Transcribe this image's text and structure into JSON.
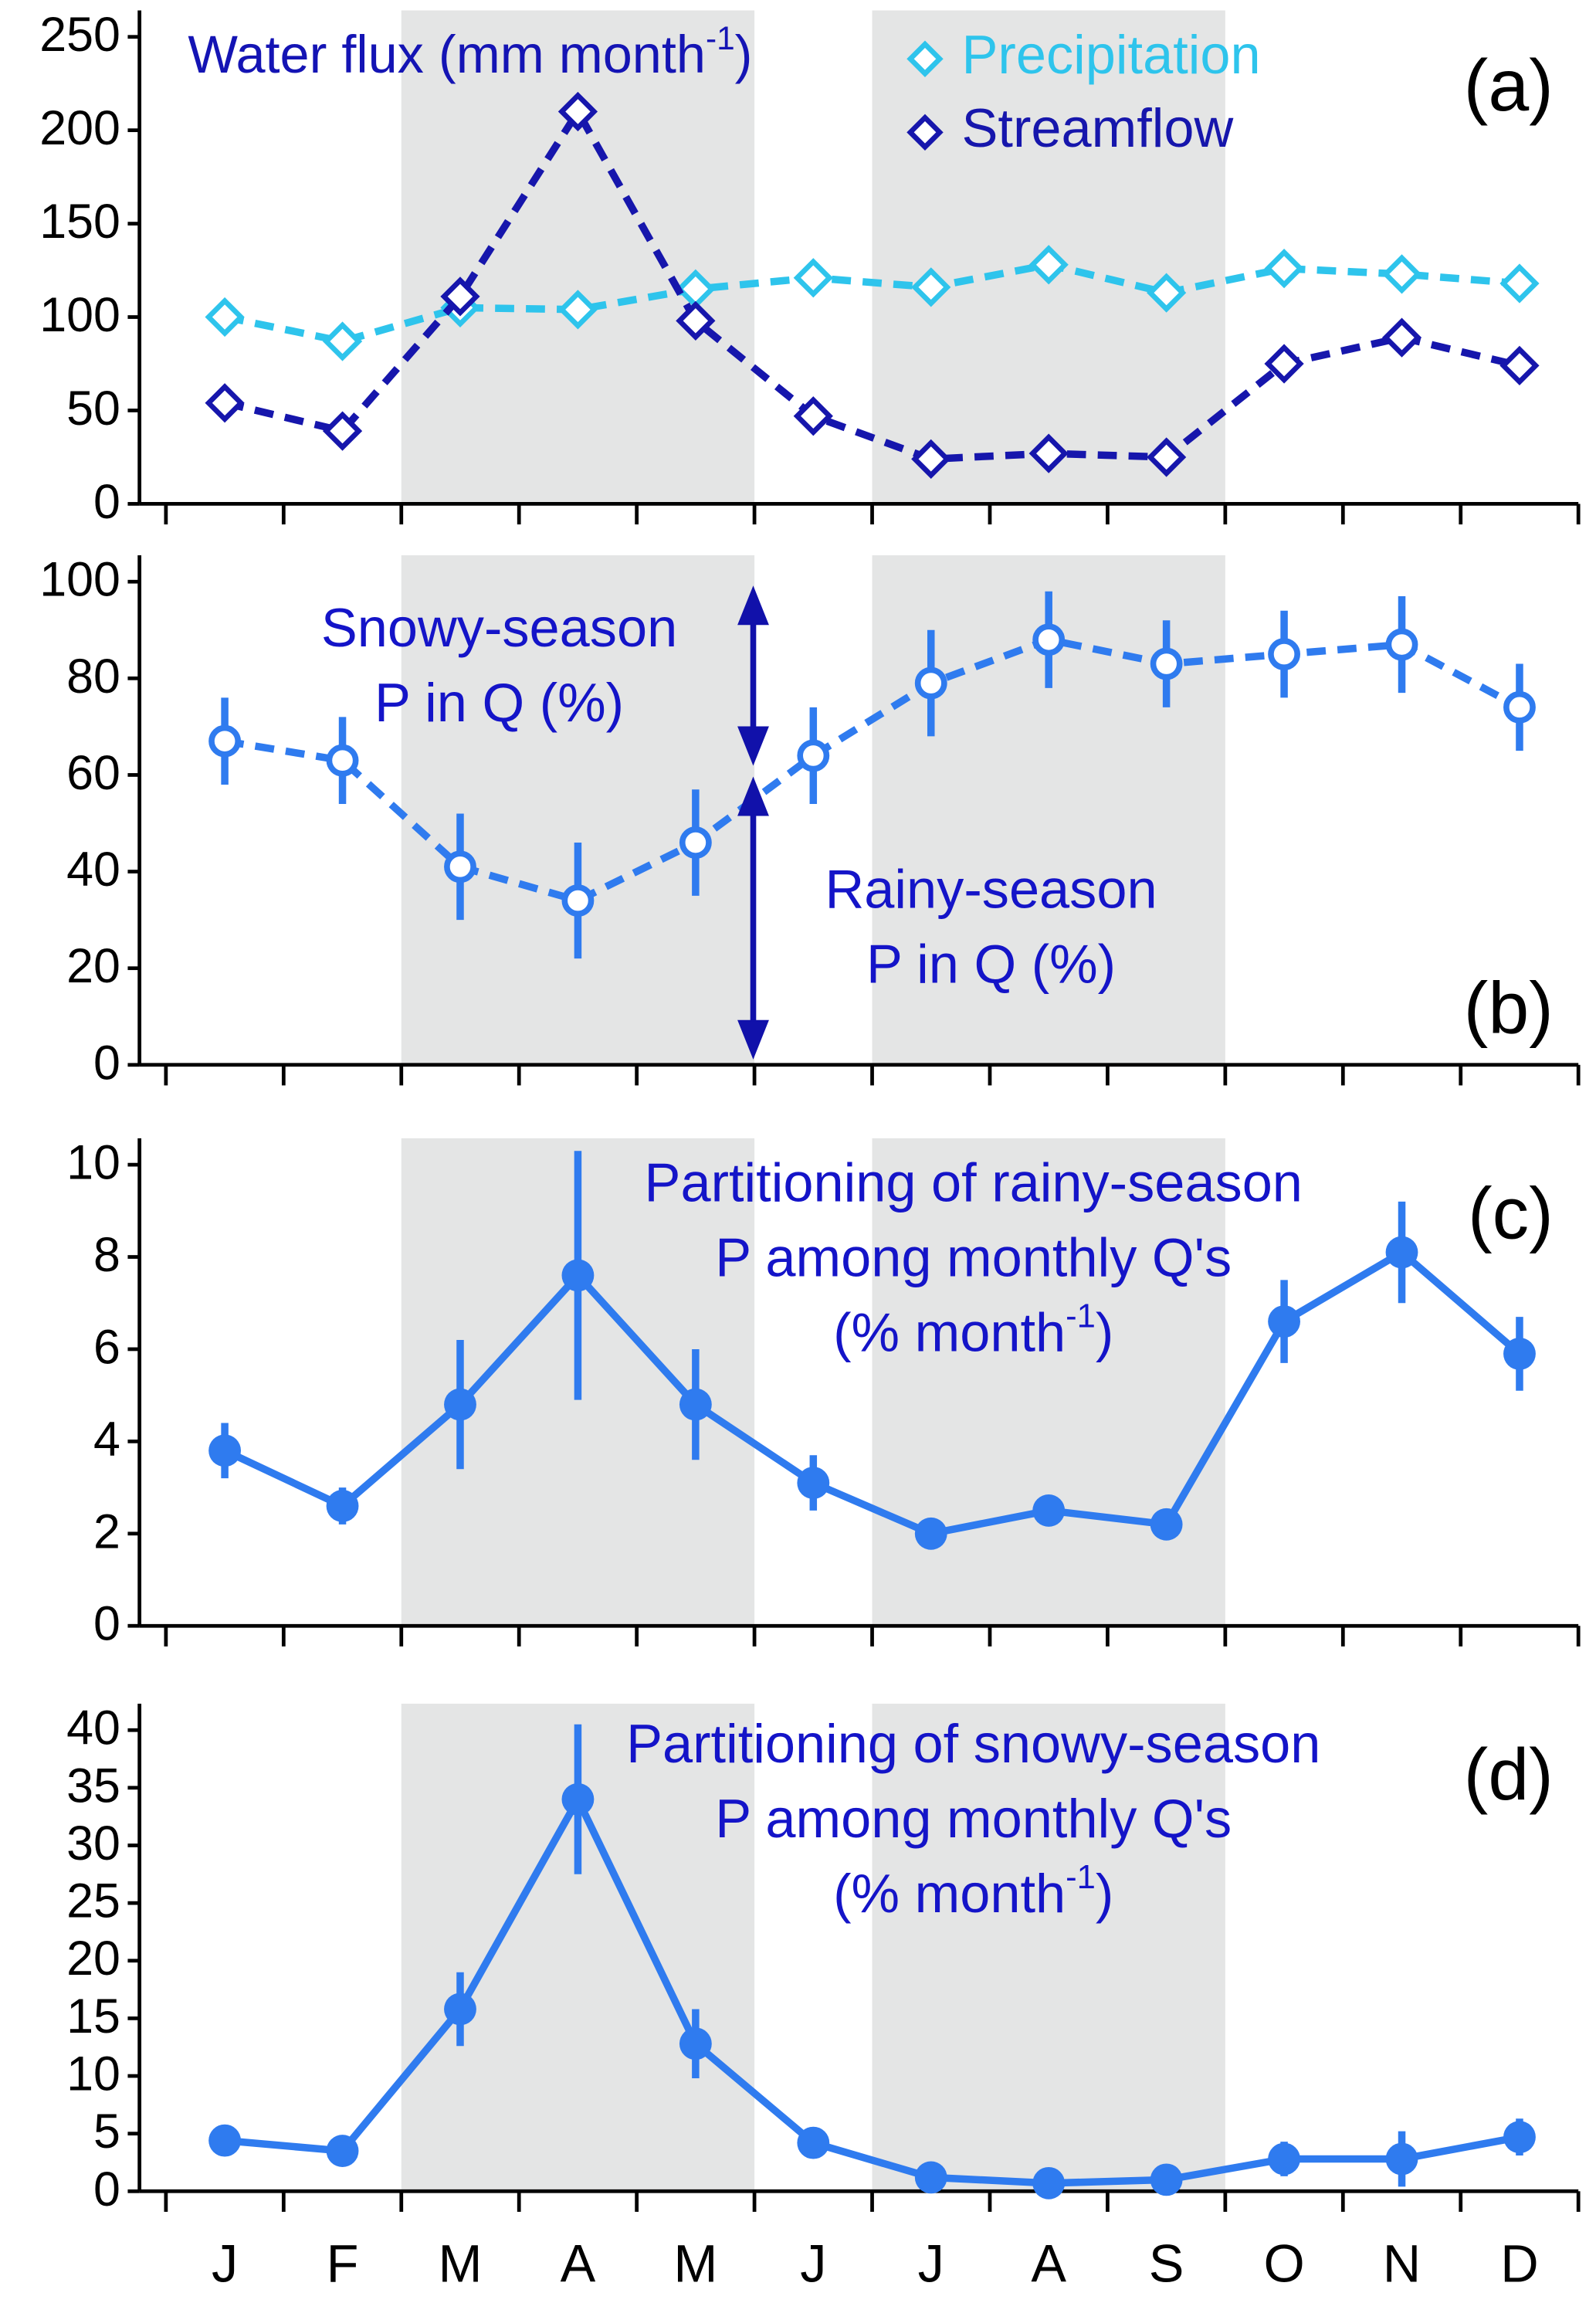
{
  "chart_data": [
    {
      "type": "line",
      "panel_label": "(a)",
      "title": [
        {
          "text": "Water flux (mm month"
        },
        {
          "text": "-1",
          "sup": true
        },
        {
          "text": ")"
        }
      ],
      "title_color": "#1414b4",
      "ylim": [
        0,
        250
      ],
      "yticks": [
        0,
        50,
        100,
        150,
        200,
        250
      ],
      "series": [
        {
          "name": "Precipitation",
          "color": "#2ec4ec",
          "marker": "diamond-open",
          "linestyle": "dashed",
          "values": [
            100,
            87,
            105,
            104,
            115,
            121,
            116,
            128,
            113,
            126,
            123,
            118
          ]
        },
        {
          "name": "Streamflow",
          "color": "#1616ac",
          "marker": "diamond-open",
          "linestyle": "dashed",
          "values": [
            54,
            39,
            111,
            210,
            98,
            47,
            24,
            27,
            25,
            75,
            89,
            74
          ]
        }
      ]
    },
    {
      "type": "line",
      "panel_label": "(b)",
      "ylim": [
        0,
        100
      ],
      "yticks": [
        0,
        20,
        40,
        60,
        80,
        100
      ],
      "series": [
        {
          "color": "#2f7bef",
          "marker": "circle-open",
          "linestyle": "dashed",
          "values": [
            67,
            63,
            41,
            34,
            46,
            64,
            79,
            88,
            83,
            85,
            87,
            74
          ],
          "errors": [
            9,
            9,
            11,
            12,
            11,
            10,
            11,
            10,
            9,
            9,
            10,
            9
          ]
        }
      ],
      "annotations": [
        {
          "color": "#1414c8",
          "lines": [
            [
              {
                "text": "Snowy-season"
              }
            ],
            [
              {
                "text": "P in Q (%)"
              }
            ]
          ]
        },
        {
          "color": "#1414c8",
          "lines": [
            [
              {
                "text": "Rainy-season"
              }
            ],
            [
              {
                "text": "P in Q (%)"
              }
            ]
          ]
        }
      ]
    },
    {
      "type": "line",
      "panel_label": "(c)",
      "ylim": [
        0,
        10
      ],
      "yticks": [
        0,
        2,
        4,
        6,
        8,
        10
      ],
      "series": [
        {
          "color": "#2f7bef",
          "marker": "circle-filled",
          "linestyle": "solid",
          "values": [
            3.8,
            2.6,
            4.8,
            7.6,
            4.8,
            3.1,
            2.0,
            2.5,
            2.2,
            6.6,
            8.1,
            5.9
          ],
          "errors": [
            0.6,
            0.4,
            1.4,
            2.7,
            1.2,
            0.6,
            0.2,
            0.3,
            0.2,
            0.9,
            1.1,
            0.8
          ]
        }
      ],
      "annotations": [
        {
          "color": "#1414c8",
          "lines": [
            [
              {
                "text": "Partitioning of rainy-season"
              }
            ],
            [
              {
                "text": "P among monthly Q's"
              }
            ],
            [
              {
                "text": "(% month"
              },
              {
                "text": "-1",
                "sup": true
              },
              {
                "text": ")"
              }
            ]
          ]
        }
      ]
    },
    {
      "type": "line",
      "panel_label": "(d)",
      "categories": [
        "J",
        "F",
        "M",
        "A",
        "M",
        "J",
        "J",
        "A",
        "S",
        "O",
        "N",
        "D"
      ],
      "ylim": [
        0,
        40
      ],
      "yticks": [
        0,
        5,
        10,
        15,
        20,
        25,
        30,
        35,
        40
      ],
      "series": [
        {
          "color": "#2f7bef",
          "marker": "circle-filled",
          "linestyle": "solid",
          "values": [
            4.4,
            3.5,
            15.8,
            34.0,
            12.8,
            4.2,
            1.2,
            0.7,
            1.0,
            2.8,
            2.8,
            4.7
          ],
          "errors": [
            0.5,
            0.5,
            3.2,
            6.5,
            3.0,
            0.6,
            0.5,
            0.4,
            0.4,
            1.5,
            2.4,
            1.6
          ]
        }
      ],
      "annotations": [
        {
          "color": "#1414c8",
          "lines": [
            [
              {
                "text": "Partitioning of snowy-season"
              }
            ],
            [
              {
                "text": "P among monthly Q's"
              }
            ],
            [
              {
                "text": "(% month"
              },
              {
                "text": "-1",
                "sup": true
              },
              {
                "text": ")"
              }
            ]
          ]
        }
      ]
    }
  ]
}
